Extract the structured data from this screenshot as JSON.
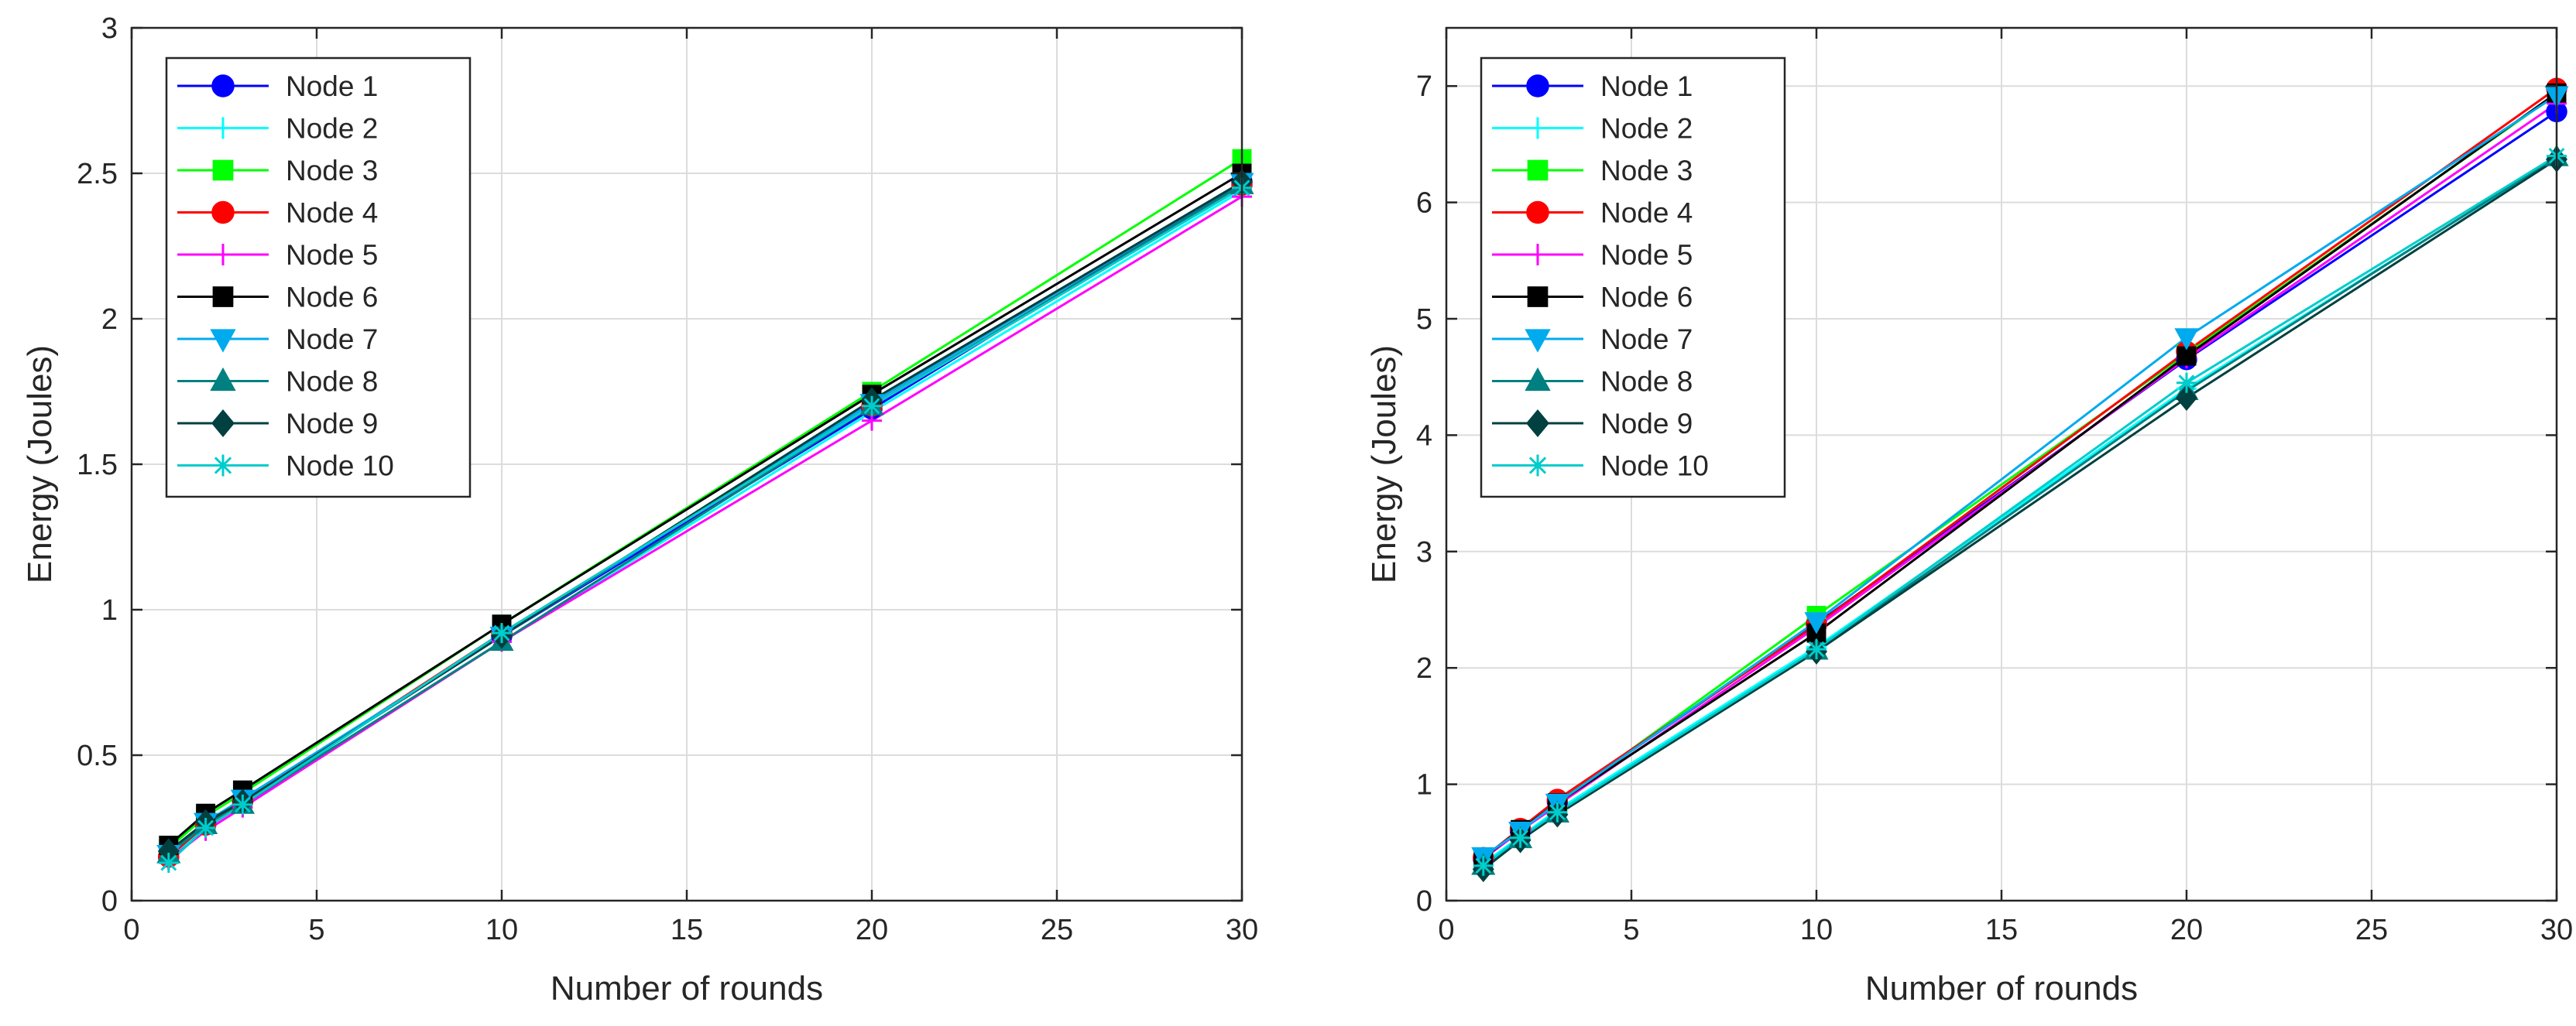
{
  "chart_data": [
    {
      "type": "line",
      "title": "",
      "xlabel": "Number of rounds",
      "ylabel": "Energy (Joules)",
      "xlim": [
        0,
        30
      ],
      "ylim": [
        0,
        3
      ],
      "xticks": [
        0,
        5,
        10,
        15,
        20,
        25,
        30
      ],
      "yticks": [
        0,
        0.5,
        1,
        1.5,
        2,
        2.5,
        3
      ],
      "xtick_labels": [
        "0",
        "5",
        "10",
        "15",
        "20",
        "25",
        "30"
      ],
      "ytick_labels": [
        "0",
        "0.5",
        "1",
        "1.5",
        "2",
        "2.5",
        "3"
      ],
      "grid": true,
      "legend_position": "top-left",
      "x": [
        1,
        2,
        3,
        10,
        20,
        30
      ],
      "series": [
        {
          "name": "Node 1",
          "color": "#0000ff",
          "marker": "circle",
          "values": [
            0.15,
            0.26,
            0.34,
            0.91,
            1.69,
            2.47
          ]
        },
        {
          "name": "Node 2",
          "color": "#00ffff",
          "marker": "plus",
          "values": [
            0.14,
            0.25,
            0.33,
            0.89,
            1.68,
            2.44
          ]
        },
        {
          "name": "Node 3",
          "color": "#00ff00",
          "marker": "square",
          "values": [
            0.18,
            0.29,
            0.37,
            0.95,
            1.75,
            2.55
          ]
        },
        {
          "name": "Node 4",
          "color": "#ff0000",
          "marker": "circle",
          "values": [
            0.15,
            0.26,
            0.34,
            0.92,
            1.7,
            2.46
          ]
        },
        {
          "name": "Node 5",
          "color": "#ff00ff",
          "marker": "plus",
          "values": [
            0.14,
            0.24,
            0.32,
            0.89,
            1.65,
            2.42
          ]
        },
        {
          "name": "Node 6",
          "color": "#000000",
          "marker": "square",
          "values": [
            0.19,
            0.3,
            0.38,
            0.95,
            1.74,
            2.5
          ]
        },
        {
          "name": "Node 7",
          "color": "#00aaee",
          "marker": "triangle-down",
          "values": [
            0.16,
            0.27,
            0.35,
            0.91,
            1.71,
            2.47
          ]
        },
        {
          "name": "Node 8",
          "color": "#008080",
          "marker": "triangle-up",
          "values": [
            0.16,
            0.26,
            0.33,
            0.89,
            1.7,
            2.46
          ]
        },
        {
          "name": "Node 9",
          "color": "#004040",
          "marker": "diamond",
          "values": [
            0.17,
            0.27,
            0.34,
            0.91,
            1.72,
            2.47
          ]
        },
        {
          "name": "Node 10",
          "color": "#00cccc",
          "marker": "asterisk",
          "values": [
            0.13,
            0.25,
            0.33,
            0.92,
            1.7,
            2.45
          ]
        }
      ]
    },
    {
      "type": "line",
      "title": "",
      "xlabel": "Number of rounds",
      "ylabel": "Energy (Joules)",
      "xlim": [
        0,
        30
      ],
      "ylim": [
        0,
        7.5
      ],
      "xticks": [
        0,
        5,
        10,
        15,
        20,
        25,
        30
      ],
      "yticks": [
        0,
        1,
        2,
        3,
        4,
        5,
        6,
        7
      ],
      "xtick_labels": [
        "0",
        "5",
        "10",
        "15",
        "20",
        "25",
        "30"
      ],
      "ytick_labels": [
        "0",
        "1",
        "2",
        "3",
        "4",
        "5",
        "6",
        "7"
      ],
      "grid": true,
      "legend_position": "top-left",
      "x": [
        1,
        2,
        3,
        10,
        20,
        30
      ],
      "series": [
        {
          "name": "Node 1",
          "color": "#0000ff",
          "marker": "circle",
          "values": [
            0.36,
            0.6,
            0.85,
            2.38,
            4.65,
            6.78
          ]
        },
        {
          "name": "Node 2",
          "color": "#00ffff",
          "marker": "plus",
          "values": [
            0.32,
            0.55,
            0.78,
            2.18,
            4.4,
            6.38
          ]
        },
        {
          "name": "Node 3",
          "color": "#00ff00",
          "marker": "square",
          "values": [
            0.37,
            0.6,
            0.84,
            2.45,
            4.7,
            6.93
          ]
        },
        {
          "name": "Node 4",
          "color": "#ff0000",
          "marker": "circle",
          "values": [
            0.37,
            0.62,
            0.87,
            2.37,
            4.72,
            6.98
          ]
        },
        {
          "name": "Node 5",
          "color": "#ff00ff",
          "marker": "plus",
          "values": [
            0.36,
            0.6,
            0.82,
            2.35,
            4.66,
            6.85
          ]
        },
        {
          "name": "Node 6",
          "color": "#000000",
          "marker": "square",
          "values": [
            0.37,
            0.61,
            0.84,
            2.3,
            4.68,
            6.94
          ]
        },
        {
          "name": "Node 7",
          "color": "#00aaee",
          "marker": "triangle-down",
          "values": [
            0.38,
            0.6,
            0.84,
            2.4,
            4.84,
            6.92
          ]
        },
        {
          "name": "Node 8",
          "color": "#008080",
          "marker": "triangle-up",
          "values": [
            0.3,
            0.53,
            0.75,
            2.15,
            4.38,
            6.39
          ]
        },
        {
          "name": "Node 9",
          "color": "#004040",
          "marker": "diamond",
          "values": [
            0.27,
            0.52,
            0.74,
            2.14,
            4.32,
            6.37
          ]
        },
        {
          "name": "Node 10",
          "color": "#00cccc",
          "marker": "asterisk",
          "values": [
            0.3,
            0.54,
            0.76,
            2.16,
            4.45,
            6.4
          ]
        }
      ]
    }
  ]
}
